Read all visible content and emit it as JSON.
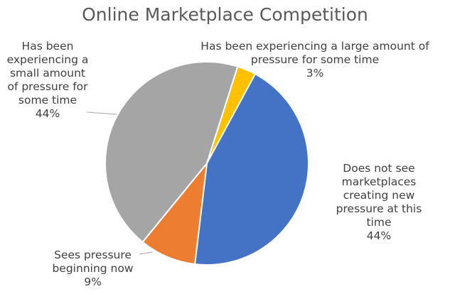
{
  "chart_data": {
    "type": "pie",
    "title": "Online Marketplace Competition",
    "categories": [
      "Has been experiencing a large amount of pressure for some time",
      "Does not see marketplaces creating new pressure at this time",
      "Sees pressure beginning now",
      "Has been experiencing a small amount of pressure for some time"
    ],
    "values": [
      3,
      44,
      9,
      44
    ],
    "value_labels": [
      "3%",
      "44%",
      "9%",
      "44%"
    ],
    "colors": [
      "#FFC000",
      "#4472C4",
      "#ED7D31",
      "#A5A5A5"
    ]
  }
}
